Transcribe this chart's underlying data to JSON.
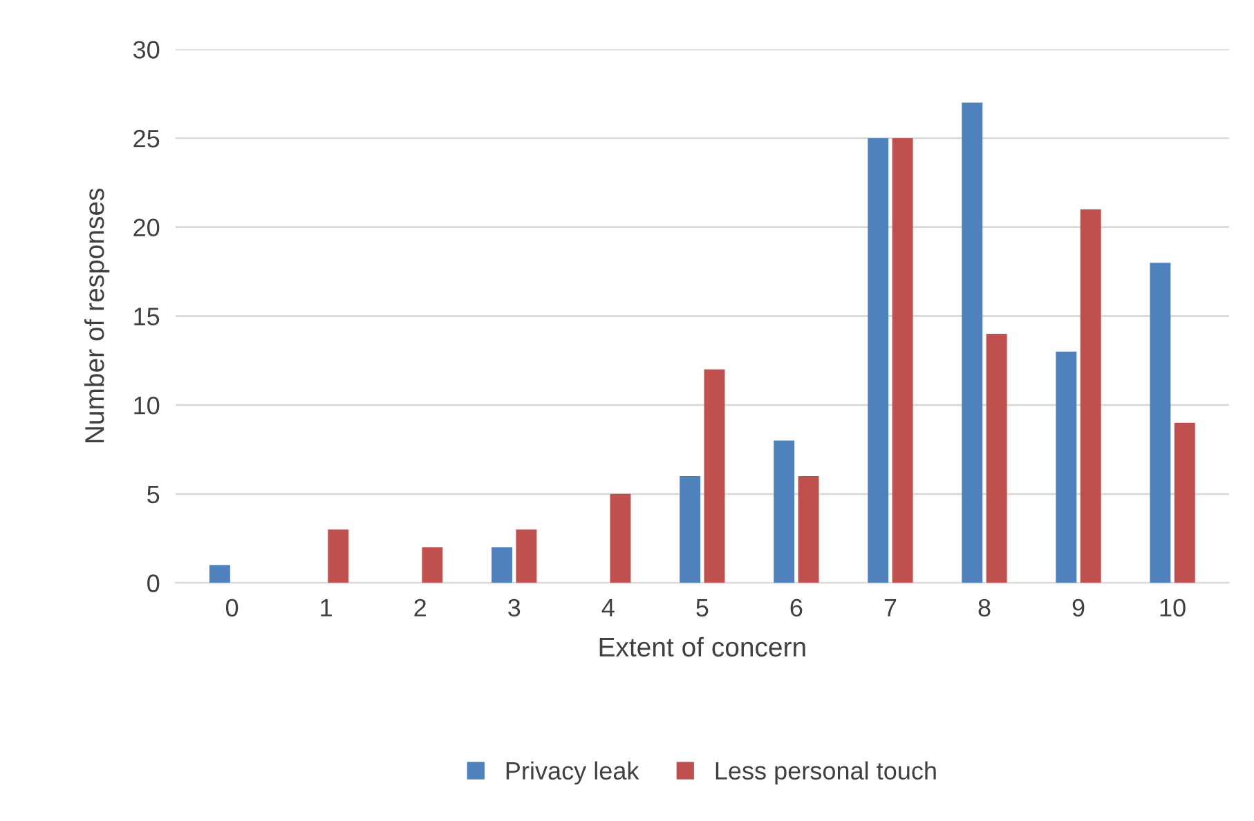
{
  "chart_data": {
    "type": "bar",
    "xlabel": "Extent of concern",
    "ylabel": "Number of responses",
    "categories": [
      "0",
      "1",
      "2",
      "3",
      "4",
      "5",
      "6",
      "7",
      "8",
      "9",
      "10"
    ],
    "series": [
      {
        "name": "Privacy leak",
        "color": "#4f81bd",
        "values": [
          1,
          0,
          0,
          2,
          0,
          6,
          8,
          25,
          27,
          13,
          18
        ]
      },
      {
        "name": "Less personal touch",
        "color": "#c0504d",
        "values": [
          0,
          3,
          2,
          3,
          5,
          12,
          6,
          25,
          14,
          21,
          9
        ]
      }
    ],
    "ylim": [
      0,
      30
    ],
    "yticks": [
      0,
      5,
      10,
      15,
      20,
      25,
      30
    ],
    "grid": "y",
    "legend": "bottom"
  }
}
